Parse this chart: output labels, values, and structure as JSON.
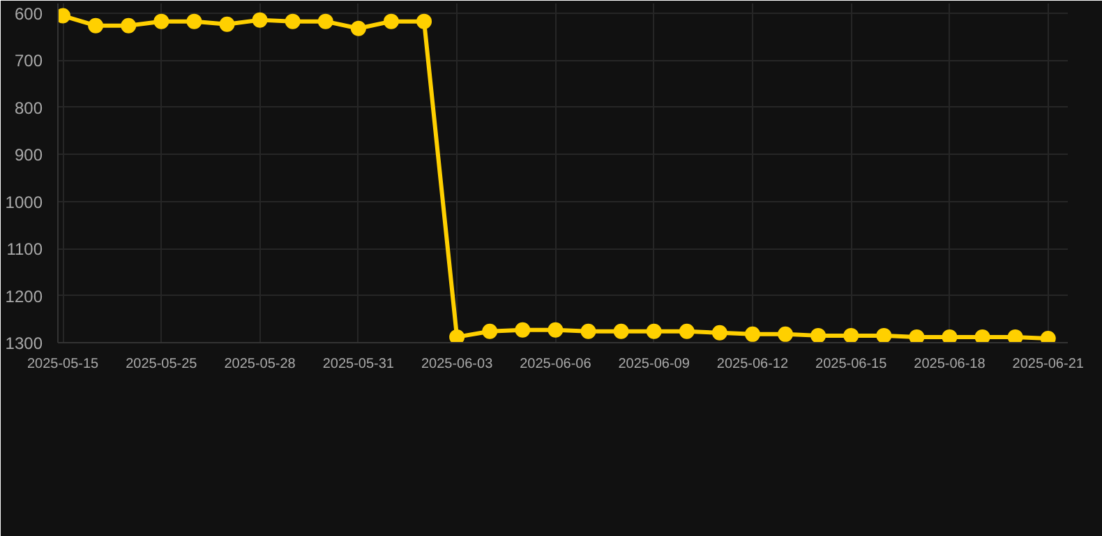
{
  "chart_data": {
    "type": "line",
    "categories": [
      "2025-05-15",
      null,
      null,
      "2025-05-25",
      null,
      null,
      "2025-05-28",
      null,
      null,
      "2025-05-31",
      null,
      null,
      "2025-06-03",
      null,
      null,
      "2025-06-06",
      null,
      null,
      "2025-06-09",
      null,
      null,
      "2025-06-12",
      null,
      null,
      "2025-06-15",
      null,
      null,
      "2025-06-18",
      null,
      null,
      "2025-06-21"
    ],
    "series": [
      {
        "color": "#ffd000",
        "values": [
          606,
          627,
          627,
          618,
          618,
          624,
          615,
          618,
          618,
          633,
          618,
          618,
          1288,
          1276,
          1273,
          1273,
          1276,
          1276,
          1276,
          1276,
          1279,
          1282,
          1282,
          1285,
          1285,
          1285,
          1288,
          1288,
          1288,
          1288,
          1291
        ]
      }
    ],
    "ylim": [
      1300,
      580
    ],
    "yticks": [
      600,
      700,
      800,
      900,
      1000,
      1100,
      1200,
      1300
    ],
    "grid": true,
    "marker": "circle",
    "line_style": "solid"
  }
}
